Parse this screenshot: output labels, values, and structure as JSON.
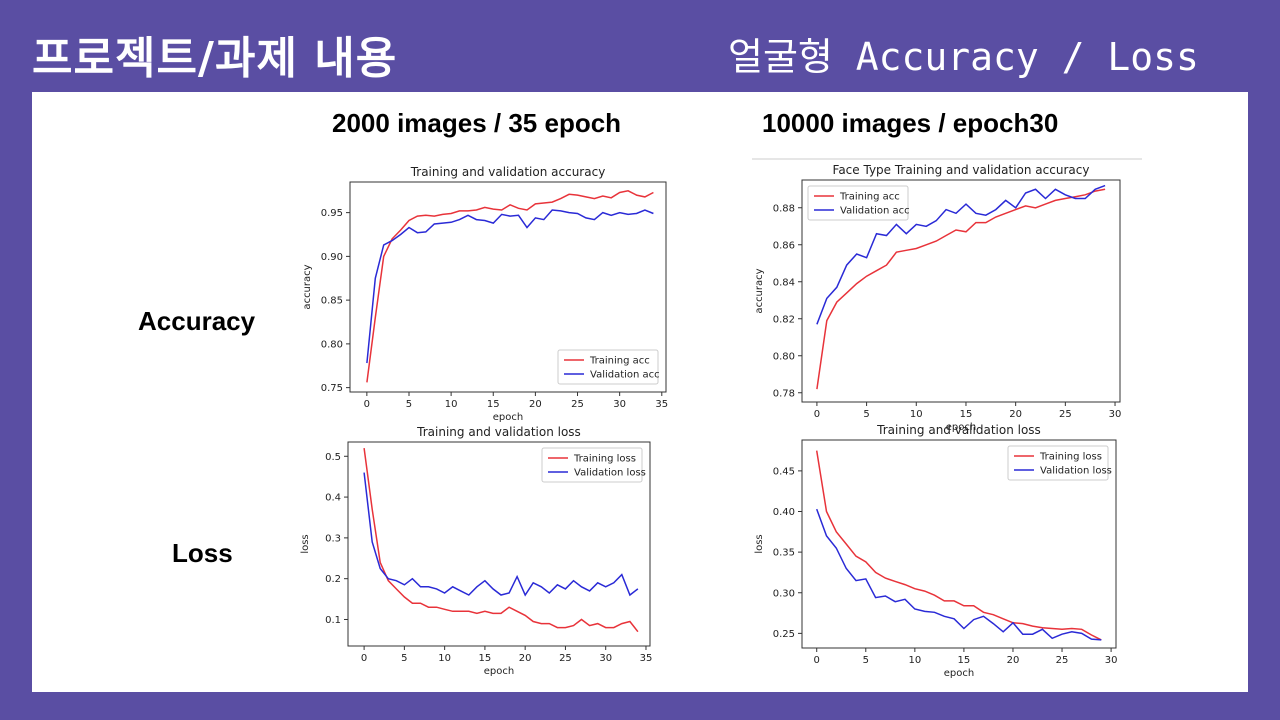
{
  "header": {
    "title": "프로젝트/과제 내용",
    "subtitle": "얼굴형 Accuracy / Loss"
  },
  "columns": [
    "2000 images / 35 epoch",
    "10000 images / epoch30"
  ],
  "rows": [
    "Accuracy",
    "Loss"
  ],
  "colors": {
    "training": "#e8333a",
    "validation": "#2a2ad6",
    "background": "#5a4ea3"
  },
  "chart_data": [
    {
      "id": "acc-2000",
      "type": "line",
      "title": "Training and validation accuracy",
      "xlabel": "epoch",
      "ylabel": "accuracy",
      "xlim": [
        -2,
        35.5
      ],
      "ylim": [
        0.745,
        0.985
      ],
      "xticks": [
        0,
        5,
        10,
        15,
        20,
        25,
        30,
        35
      ],
      "yticks": [
        0.75,
        0.8,
        0.85,
        0.9,
        0.95
      ],
      "yticklabels": [
        "0.75",
        "0.80",
        "0.85",
        "0.90",
        "0.95"
      ],
      "legend": "bottom-right",
      "x": [
        0,
        1,
        2,
        3,
        4,
        5,
        6,
        7,
        8,
        9,
        10,
        11,
        12,
        13,
        14,
        15,
        16,
        17,
        18,
        19,
        20,
        21,
        22,
        23,
        24,
        25,
        26,
        27,
        28,
        29,
        30,
        31,
        32,
        33,
        34
      ],
      "series": [
        {
          "name": "Training acc",
          "color": "#e8333a",
          "values": [
            0.756,
            0.83,
            0.9,
            0.92,
            0.93,
            0.941,
            0.946,
            0.947,
            0.946,
            0.948,
            0.949,
            0.952,
            0.952,
            0.953,
            0.956,
            0.954,
            0.953,
            0.959,
            0.955,
            0.953,
            0.96,
            0.961,
            0.962,
            0.966,
            0.971,
            0.97,
            0.968,
            0.966,
            0.969,
            0.967,
            0.973,
            0.975,
            0.97,
            0.968,
            0.973
          ]
        },
        {
          "name": "Validation acc",
          "color": "#2a2ad6",
          "values": [
            0.778,
            0.875,
            0.913,
            0.918,
            0.925,
            0.933,
            0.927,
            0.928,
            0.937,
            0.938,
            0.939,
            0.942,
            0.947,
            0.942,
            0.941,
            0.938,
            0.948,
            0.946,
            0.947,
            0.933,
            0.944,
            0.942,
            0.953,
            0.952,
            0.95,
            0.949,
            0.944,
            0.942,
            0.95,
            0.947,
            0.95,
            0.948,
            0.949,
            0.953,
            0.949
          ]
        }
      ]
    },
    {
      "id": "acc-10000",
      "type": "line",
      "title": "Face Type Training and validation accuracy",
      "xlabel": "epoch",
      "ylabel": "accuracy",
      "xlim": [
        -1.5,
        30.5
      ],
      "ylim": [
        0.775,
        0.895
      ],
      "xticks": [
        0,
        5,
        10,
        15,
        20,
        25,
        30
      ],
      "yticks": [
        0.78,
        0.8,
        0.82,
        0.84,
        0.86,
        0.88
      ],
      "yticklabels": [
        "0.78",
        "0.80",
        "0.82",
        "0.84",
        "0.86",
        "0.88"
      ],
      "legend": "top-left",
      "x": [
        0,
        1,
        2,
        3,
        4,
        5,
        6,
        7,
        8,
        9,
        10,
        11,
        12,
        13,
        14,
        15,
        16,
        17,
        18,
        19,
        20,
        21,
        22,
        23,
        24,
        25,
        26,
        27,
        28,
        29
      ],
      "series": [
        {
          "name": "Training acc",
          "color": "#e8333a",
          "values": [
            0.782,
            0.819,
            0.829,
            0.834,
            0.839,
            0.843,
            0.846,
            0.849,
            0.856,
            0.857,
            0.858,
            0.86,
            0.862,
            0.865,
            0.868,
            0.867,
            0.872,
            0.872,
            0.875,
            0.877,
            0.879,
            0.881,
            0.88,
            0.882,
            0.884,
            0.885,
            0.886,
            0.887,
            0.889,
            0.89
          ]
        },
        {
          "name": "Validation acc",
          "color": "#2a2ad6",
          "values": [
            0.817,
            0.831,
            0.837,
            0.849,
            0.855,
            0.853,
            0.866,
            0.865,
            0.871,
            0.866,
            0.871,
            0.87,
            0.873,
            0.879,
            0.877,
            0.882,
            0.877,
            0.876,
            0.879,
            0.884,
            0.88,
            0.888,
            0.89,
            0.885,
            0.89,
            0.887,
            0.885,
            0.885,
            0.89,
            0.892
          ]
        }
      ]
    },
    {
      "id": "loss-2000",
      "type": "line",
      "title": "Training and validation loss",
      "xlabel": "epoch",
      "ylabel": "loss",
      "xlim": [
        -2,
        35.5
      ],
      "ylim": [
        0.035,
        0.535
      ],
      "xticks": [
        0,
        5,
        10,
        15,
        20,
        25,
        30,
        35
      ],
      "yticks": [
        0.1,
        0.2,
        0.3,
        0.4,
        0.5
      ],
      "yticklabels": [
        "0.1",
        "0.2",
        "0.3",
        "0.4",
        "0.5"
      ],
      "legend": "top-right",
      "x": [
        0,
        1,
        2,
        3,
        4,
        5,
        6,
        7,
        8,
        9,
        10,
        11,
        12,
        13,
        14,
        15,
        16,
        17,
        18,
        19,
        20,
        21,
        22,
        23,
        24,
        25,
        26,
        27,
        28,
        29,
        30,
        31,
        32,
        33,
        34
      ],
      "series": [
        {
          "name": "Training loss",
          "color": "#e8333a",
          "values": [
            0.52,
            0.37,
            0.24,
            0.195,
            0.175,
            0.155,
            0.14,
            0.14,
            0.13,
            0.13,
            0.125,
            0.12,
            0.12,
            0.12,
            0.115,
            0.12,
            0.115,
            0.115,
            0.13,
            0.12,
            0.11,
            0.095,
            0.09,
            0.09,
            0.08,
            0.08,
            0.085,
            0.1,
            0.085,
            0.09,
            0.08,
            0.08,
            0.09,
            0.095,
            0.07
          ]
        },
        {
          "name": "Validation loss",
          "color": "#2a2ad6",
          "values": [
            0.46,
            0.29,
            0.225,
            0.2,
            0.195,
            0.185,
            0.2,
            0.18,
            0.18,
            0.175,
            0.165,
            0.18,
            0.17,
            0.16,
            0.18,
            0.195,
            0.175,
            0.16,
            0.165,
            0.205,
            0.16,
            0.19,
            0.18,
            0.165,
            0.185,
            0.175,
            0.195,
            0.18,
            0.17,
            0.19,
            0.18,
            0.19,
            0.21,
            0.16,
            0.175
          ]
        }
      ]
    },
    {
      "id": "loss-10000",
      "type": "line",
      "title": "Training and validation loss",
      "xlabel": "epoch",
      "ylabel": "loss",
      "xlim": [
        -1.5,
        30.5
      ],
      "ylim": [
        0.232,
        0.488
      ],
      "xticks": [
        0,
        5,
        10,
        15,
        20,
        25,
        30
      ],
      "yticks": [
        0.25,
        0.3,
        0.35,
        0.4,
        0.45
      ],
      "yticklabels": [
        "0.25",
        "0.30",
        "0.35",
        "0.40",
        "0.45"
      ],
      "legend": "top-right",
      "x": [
        0,
        1,
        2,
        3,
        4,
        5,
        6,
        7,
        8,
        9,
        10,
        11,
        12,
        13,
        14,
        15,
        16,
        17,
        18,
        19,
        20,
        21,
        22,
        23,
        24,
        25,
        26,
        27,
        28,
        29
      ],
      "series": [
        {
          "name": "Training loss",
          "color": "#e8333a",
          "values": [
            0.475,
            0.4,
            0.375,
            0.36,
            0.345,
            0.338,
            0.325,
            0.318,
            0.314,
            0.31,
            0.305,
            0.302,
            0.297,
            0.29,
            0.29,
            0.284,
            0.284,
            0.276,
            0.273,
            0.268,
            0.263,
            0.262,
            0.259,
            0.257,
            0.256,
            0.255,
            0.256,
            0.255,
            0.248,
            0.242
          ]
        },
        {
          "name": "Validation loss",
          "color": "#2a2ad6",
          "values": [
            0.403,
            0.37,
            0.355,
            0.33,
            0.315,
            0.317,
            0.294,
            0.296,
            0.289,
            0.292,
            0.28,
            0.277,
            0.276,
            0.271,
            0.268,
            0.256,
            0.267,
            0.271,
            0.262,
            0.252,
            0.263,
            0.249,
            0.249,
            0.255,
            0.244,
            0.249,
            0.252,
            0.25,
            0.243,
            0.242
          ]
        }
      ]
    }
  ]
}
